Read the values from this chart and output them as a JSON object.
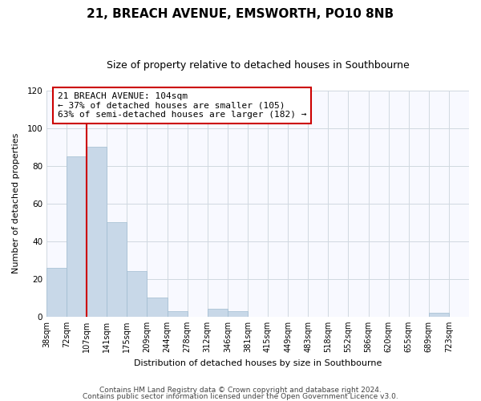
{
  "title": "21, BREACH AVENUE, EMSWORTH, PO10 8NB",
  "subtitle": "Size of property relative to detached houses in Southbourne",
  "xlabel": "Distribution of detached houses by size in Southbourne",
  "ylabel": "Number of detached properties",
  "bin_labels": [
    "38sqm",
    "72sqm",
    "107sqm",
    "141sqm",
    "175sqm",
    "209sqm",
    "244sqm",
    "278sqm",
    "312sqm",
    "346sqm",
    "381sqm",
    "415sqm",
    "449sqm",
    "483sqm",
    "518sqm",
    "552sqm",
    "586sqm",
    "620sqm",
    "655sqm",
    "689sqm",
    "723sqm"
  ],
  "bar_values": [
    26,
    85,
    90,
    50,
    24,
    10,
    3,
    0,
    4,
    3,
    0,
    0,
    0,
    0,
    0,
    0,
    0,
    0,
    0,
    2,
    0
  ],
  "bar_color": "#c8d8e8",
  "bar_edge_color": "#a0bcd0",
  "marker_bin_index": 2,
  "ylim": [
    0,
    120
  ],
  "yticks": [
    0,
    20,
    40,
    60,
    80,
    100,
    120
  ],
  "annotation_title": "21 BREACH AVENUE: 104sqm",
  "annotation_line1": "← 37% of detached houses are smaller (105)",
  "annotation_line2": "63% of semi-detached houses are larger (182) →",
  "annotation_box_color": "#ffffff",
  "annotation_box_edge": "#cc0000",
  "marker_line_color": "#cc0000",
  "footer_line1": "Contains HM Land Registry data © Crown copyright and database right 2024.",
  "footer_line2": "Contains public sector information licensed under the Open Government Licence v3.0.",
  "grid_color": "#d0d8e0",
  "title_fontsize": 11,
  "subtitle_fontsize": 9,
  "axis_label_fontsize": 8,
  "tick_fontsize": 7,
  "annotation_fontsize": 8,
  "footer_fontsize": 6.5
}
